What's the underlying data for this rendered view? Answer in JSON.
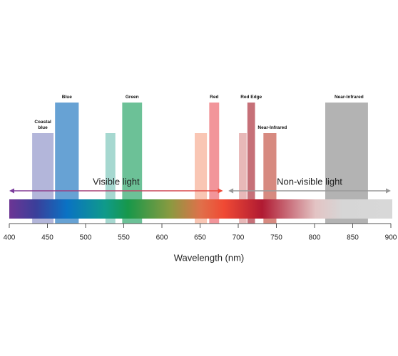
{
  "chart_data": {
    "type": "range-bar",
    "x_label": "Wavelength (nm)",
    "xlim": [
      400,
      900
    ],
    "xticks": [
      400,
      450,
      500,
      550,
      600,
      650,
      700,
      750,
      800,
      850,
      900
    ],
    "bands": [
      {
        "name": "Coastal blue",
        "start": 430,
        "end": 458,
        "color": "#b3b6da",
        "height": "short"
      },
      {
        "name": "Blue",
        "start": 460,
        "end": 491,
        "color": "#67a2d4",
        "height": "tall"
      },
      {
        "start": 526,
        "end": 539,
        "color": "#a6d8d0",
        "height": "short"
      },
      {
        "name": "Green",
        "start": 548,
        "end": 574,
        "color": "#6cc197",
        "height": "tall"
      },
      {
        "start": 643,
        "end": 659,
        "color": "#f9c6b4",
        "height": "short"
      },
      {
        "name": "Red",
        "start": 662,
        "end": 675,
        "color": "#f2959a",
        "height": "tall"
      },
      {
        "start": 701,
        "end": 711,
        "color": "#e8b8b8",
        "height": "short"
      },
      {
        "name": "Red Edge",
        "start": 712,
        "end": 722,
        "color": "#c67078",
        "height": "tall"
      },
      {
        "name": "Near-Infrared",
        "start": 733,
        "end": 750,
        "color": "#d78a80",
        "height": "short"
      },
      {
        "name": "Near-Infrared",
        "start": 814,
        "end": 870,
        "color": "#b3b3b3",
        "height": "tall"
      }
    ],
    "regions": [
      {
        "name": "Visible light",
        "start": 400,
        "end": 680,
        "color": "#7b3b9c",
        "end_color": "#ee4b3a"
      },
      {
        "name": "Non-visible light",
        "start": 687,
        "end": 900,
        "color": "#999999"
      }
    ]
  }
}
